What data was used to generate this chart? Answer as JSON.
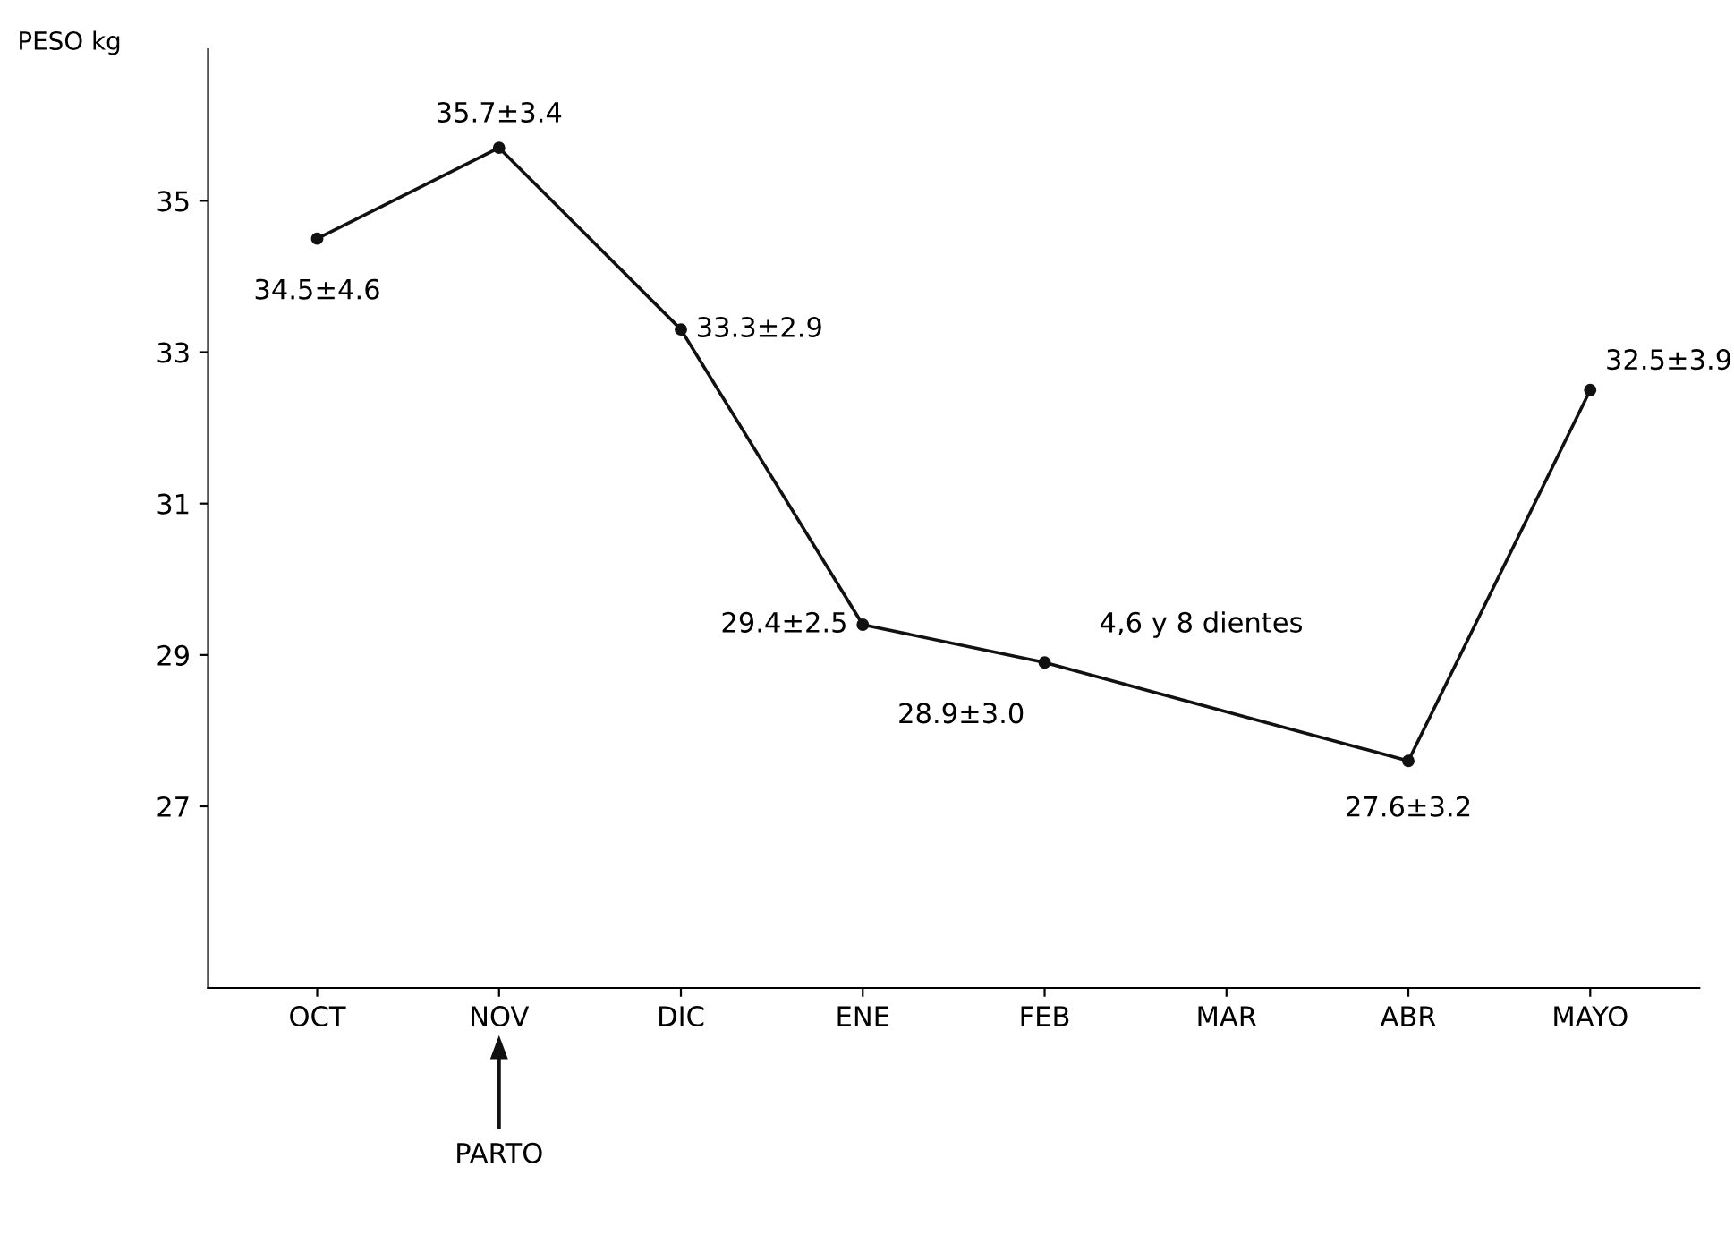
{
  "chart_data": {
    "type": "line",
    "ylabel": "PESO kg",
    "categories": [
      "OCT",
      "NOV",
      "DIC",
      "ENE",
      "FEB",
      "MAR",
      "ABR",
      "MAYO"
    ],
    "values": [
      34.5,
      35.7,
      33.3,
      29.4,
      28.9,
      null,
      27.6,
      32.5
    ],
    "value_labels": [
      "34.5±4.6",
      "35.7±3.4",
      "33.3±2.9",
      "29.4±2.5",
      "28.9±3.0",
      null,
      "27.6±3.2",
      "32.5±3.9"
    ],
    "color": "#111111",
    "marker": "circle",
    "line_style": "solid",
    "ylim": [
      24.6,
      37
    ],
    "yticks": [
      27,
      29,
      31,
      33,
      35
    ],
    "grid": false,
    "annotations": [
      "4,6 y 8 dientes",
      "PARTO"
    ]
  }
}
